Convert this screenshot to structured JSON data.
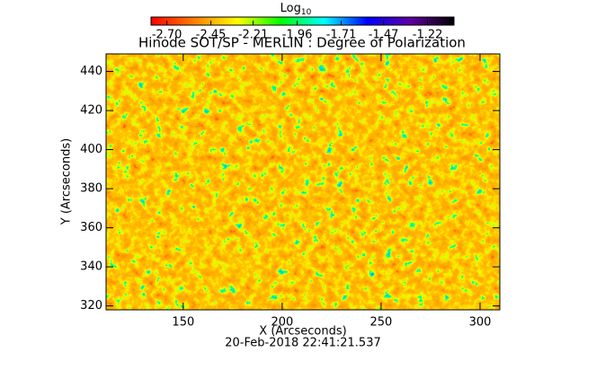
{
  "chart_data": {
    "type": "image",
    "title": "Hinode SOT/SP - MERLIN : Degree of Polarization",
    "x_label": "X (Arcseconds)",
    "y_label": "Y (Arcseconds)",
    "footer": "20-Feb-2018 22:41:21.537",
    "xlim": [
      111,
      310
    ],
    "xticks": [
      150,
      200,
      250,
      300
    ],
    "ylim": [
      318,
      449
    ],
    "yticks": [
      320,
      340,
      360,
      380,
      400,
      420,
      440
    ],
    "colorbar": {
      "label": "Log",
      "label_sub": "10",
      "lim": [
        -2.79,
        -1.07
      ],
      "ticks": [
        {
          "value": -2.7,
          "label": "-2.70"
        },
        {
          "value": -2.45,
          "label": "-2.45"
        },
        {
          "value": -2.21,
          "label": "-2.21"
        },
        {
          "value": -1.96,
          "label": "-1.96"
        },
        {
          "value": -1.71,
          "label": "-1.71"
        },
        {
          "value": -1.47,
          "label": "-1.47"
        },
        {
          "value": -1.22,
          "label": "-1.22"
        }
      ],
      "colormap": [
        "#ff0000",
        "#ff8000",
        "#ffff00",
        "#00ff00",
        "#00ffff",
        "#0000ff",
        "#6000a0",
        "#000000"
      ]
    }
  }
}
